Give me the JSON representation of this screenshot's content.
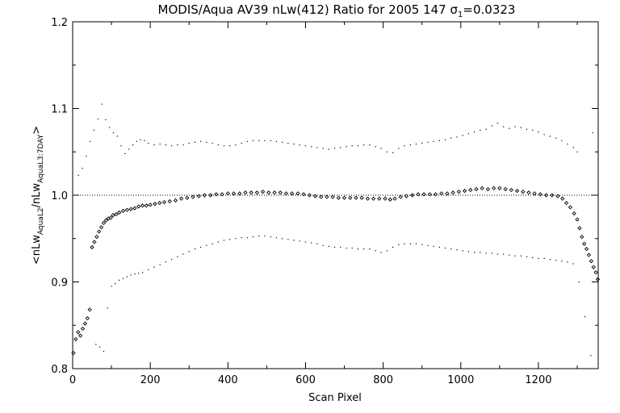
{
  "chart_data": {
    "type": "scatter",
    "title_main": "MODIS/Aqua AV39 nLw(412) Ratio for 2005 147 σ",
    "title_sigma_sub": "1",
    "title_value": "=0.0323",
    "xlabel": "Scan Pixel",
    "ylabel_parts": {
      "open": "<nLw",
      "sub1": "AquaL2",
      "mid": "/nLw",
      "sub2": "AquaL3:7DAY",
      "close": ">"
    },
    "xlim": [
      0,
      1354
    ],
    "ylim": [
      0.8,
      1.2
    ],
    "x_ticks": [
      0,
      200,
      400,
      600,
      800,
      1000,
      1200
    ],
    "y_ticks": [
      0.8,
      0.9,
      1.0,
      1.1,
      1.2
    ],
    "x_tick_labels": [
      "0",
      "200",
      "400",
      "600",
      "800",
      "1000",
      "1200"
    ],
    "y_tick_labels": [
      "0.8",
      "0.9",
      "1.0",
      "1.1",
      "1.2"
    ],
    "reference_line_y": 1.0,
    "series": [
      {
        "style": "diamond-markers",
        "points": [
          [
            2,
            0.818
          ],
          [
            8,
            0.834
          ],
          [
            14,
            0.842
          ],
          [
            20,
            0.838
          ],
          [
            26,
            0.846
          ],
          [
            32,
            0.852
          ],
          [
            38,
            0.858
          ],
          [
            44,
            0.868
          ],
          [
            50,
            0.94
          ],
          [
            56,
            0.946
          ],
          [
            62,
            0.952
          ],
          [
            68,
            0.958
          ],
          [
            74,
            0.963
          ],
          [
            80,
            0.968
          ],
          [
            86,
            0.971
          ],
          [
            92,
            0.973
          ],
          [
            98,
            0.974
          ],
          [
            104,
            0.977
          ],
          [
            112,
            0.978
          ],
          [
            120,
            0.98
          ],
          [
            130,
            0.982
          ],
          [
            140,
            0.983
          ],
          [
            150,
            0.984
          ],
          [
            160,
            0.985
          ],
          [
            170,
            0.987
          ],
          [
            180,
            0.988
          ],
          [
            190,
            0.988
          ],
          [
            200,
            0.989
          ],
          [
            212,
            0.99
          ],
          [
            224,
            0.991
          ],
          [
            236,
            0.992
          ],
          [
            250,
            0.993
          ],
          [
            265,
            0.994
          ],
          [
            280,
            0.996
          ],
          [
            295,
            0.997
          ],
          [
            310,
            0.998
          ],
          [
            325,
            0.999
          ],
          [
            340,
            1.0
          ],
          [
            355,
            1.0
          ],
          [
            370,
            1.001
          ],
          [
            385,
            1.001
          ],
          [
            400,
            1.002
          ],
          [
            415,
            1.002
          ],
          [
            430,
            1.002
          ],
          [
            445,
            1.003
          ],
          [
            460,
            1.003
          ],
          [
            475,
            1.003
          ],
          [
            490,
            1.004
          ],
          [
            505,
            1.003
          ],
          [
            520,
            1.003
          ],
          [
            535,
            1.003
          ],
          [
            550,
            1.002
          ],
          [
            565,
            1.002
          ],
          [
            580,
            1.002
          ],
          [
            595,
            1.001
          ],
          [
            610,
            1.0
          ],
          [
            625,
            0.999
          ],
          [
            640,
            0.998
          ],
          [
            655,
            0.998
          ],
          [
            670,
            0.998
          ],
          [
            685,
            0.997
          ],
          [
            700,
            0.997
          ],
          [
            715,
            0.997
          ],
          [
            730,
            0.997
          ],
          [
            745,
            0.997
          ],
          [
            760,
            0.996
          ],
          [
            775,
            0.996
          ],
          [
            790,
            0.996
          ],
          [
            805,
            0.996
          ],
          [
            818,
            0.995
          ],
          [
            830,
            0.996
          ],
          [
            845,
            0.998
          ],
          [
            860,
            0.999
          ],
          [
            875,
            1.0
          ],
          [
            890,
            1.001
          ],
          [
            905,
            1.001
          ],
          [
            920,
            1.001
          ],
          [
            935,
            1.001
          ],
          [
            950,
            1.002
          ],
          [
            965,
            1.002
          ],
          [
            980,
            1.003
          ],
          [
            995,
            1.004
          ],
          [
            1010,
            1.005
          ],
          [
            1025,
            1.006
          ],
          [
            1040,
            1.007
          ],
          [
            1055,
            1.008
          ],
          [
            1070,
            1.007
          ],
          [
            1085,
            1.008
          ],
          [
            1100,
            1.008
          ],
          [
            1115,
            1.007
          ],
          [
            1130,
            1.006
          ],
          [
            1145,
            1.005
          ],
          [
            1160,
            1.004
          ],
          [
            1175,
            1.003
          ],
          [
            1190,
            1.002
          ],
          [
            1205,
            1.001
          ],
          [
            1220,
            1.0
          ],
          [
            1235,
            1.0
          ],
          [
            1250,
            0.999
          ],
          [
            1262,
            0.996
          ],
          [
            1272,
            0.991
          ],
          [
            1282,
            0.986
          ],
          [
            1292,
            0.979
          ],
          [
            1300,
            0.972
          ],
          [
            1306,
            0.962
          ],
          [
            1312,
            0.952
          ],
          [
            1318,
            0.944
          ],
          [
            1324,
            0.938
          ],
          [
            1330,
            0.931
          ],
          [
            1336,
            0.924
          ],
          [
            1342,
            0.917
          ],
          [
            1348,
            0.911
          ],
          [
            1353,
            0.903
          ]
        ]
      },
      {
        "style": "dots",
        "points": [
          [
            15,
            1.023
          ],
          [
            25,
            1.031
          ],
          [
            35,
            1.045
          ],
          [
            45,
            1.062
          ],
          [
            55,
            1.075
          ],
          [
            65,
            1.088
          ],
          [
            75,
            1.105
          ],
          [
            85,
            1.087
          ],
          [
            95,
            1.078
          ],
          [
            105,
            1.072
          ],
          [
            115,
            1.068
          ],
          [
            125,
            1.057
          ],
          [
            135,
            1.048
          ],
          [
            145,
            1.053
          ],
          [
            155,
            1.058
          ],
          [
            165,
            1.062
          ],
          [
            175,
            1.064
          ],
          [
            185,
            1.063
          ],
          [
            195,
            1.06
          ],
          [
            210,
            1.058
          ],
          [
            225,
            1.059
          ],
          [
            240,
            1.058
          ],
          [
            255,
            1.057
          ],
          [
            270,
            1.058
          ],
          [
            285,
            1.058
          ],
          [
            300,
            1.06
          ],
          [
            315,
            1.061
          ],
          [
            330,
            1.062
          ],
          [
            345,
            1.061
          ],
          [
            360,
            1.06
          ],
          [
            375,
            1.058
          ],
          [
            390,
            1.057
          ],
          [
            405,
            1.057
          ],
          [
            420,
            1.058
          ],
          [
            435,
            1.06
          ],
          [
            450,
            1.062
          ],
          [
            465,
            1.063
          ],
          [
            480,
            1.063
          ],
          [
            495,
            1.063
          ],
          [
            510,
            1.063
          ],
          [
            525,
            1.062
          ],
          [
            540,
            1.061
          ],
          [
            555,
            1.06
          ],
          [
            570,
            1.059
          ],
          [
            585,
            1.058
          ],
          [
            600,
            1.057
          ],
          [
            615,
            1.056
          ],
          [
            630,
            1.055
          ],
          [
            645,
            1.054
          ],
          [
            660,
            1.053
          ],
          [
            675,
            1.054
          ],
          [
            690,
            1.055
          ],
          [
            705,
            1.056
          ],
          [
            720,
            1.057
          ],
          [
            735,
            1.057
          ],
          [
            750,
            1.058
          ],
          [
            765,
            1.058
          ],
          [
            780,
            1.056
          ],
          [
            795,
            1.054
          ],
          [
            810,
            1.05
          ],
          [
            825,
            1.049
          ],
          [
            840,
            1.054
          ],
          [
            855,
            1.057
          ],
          [
            870,
            1.058
          ],
          [
            885,
            1.059
          ],
          [
            900,
            1.06
          ],
          [
            915,
            1.061
          ],
          [
            930,
            1.062
          ],
          [
            945,
            1.063
          ],
          [
            960,
            1.064
          ],
          [
            975,
            1.066
          ],
          [
            990,
            1.067
          ],
          [
            1005,
            1.069
          ],
          [
            1020,
            1.071
          ],
          [
            1035,
            1.073
          ],
          [
            1050,
            1.075
          ],
          [
            1065,
            1.076
          ],
          [
            1080,
            1.08
          ],
          [
            1095,
            1.083
          ],
          [
            1110,
            1.079
          ],
          [
            1125,
            1.077
          ],
          [
            1140,
            1.079
          ],
          [
            1155,
            1.078
          ],
          [
            1170,
            1.076
          ],
          [
            1185,
            1.075
          ],
          [
            1200,
            1.073
          ],
          [
            1215,
            1.07
          ],
          [
            1230,
            1.068
          ],
          [
            1245,
            1.066
          ],
          [
            1260,
            1.063
          ],
          [
            1275,
            1.059
          ],
          [
            1290,
            1.055
          ],
          [
            1300,
            1.05
          ],
          [
            1340,
            1.072
          ]
        ]
      },
      {
        "style": "dots",
        "points": [
          [
            60,
            0.828
          ],
          [
            70,
            0.825
          ],
          [
            80,
            0.82
          ],
          [
            90,
            0.87
          ],
          [
            100,
            0.895
          ],
          [
            110,
            0.898
          ],
          [
            120,
            0.902
          ],
          [
            130,
            0.904
          ],
          [
            140,
            0.906
          ],
          [
            150,
            0.908
          ],
          [
            160,
            0.909
          ],
          [
            170,
            0.91
          ],
          [
            180,
            0.911
          ],
          [
            195,
            0.914
          ],
          [
            210,
            0.917
          ],
          [
            225,
            0.92
          ],
          [
            240,
            0.923
          ],
          [
            255,
            0.926
          ],
          [
            270,
            0.929
          ],
          [
            285,
            0.932
          ],
          [
            300,
            0.935
          ],
          [
            315,
            0.938
          ],
          [
            330,
            0.94
          ],
          [
            345,
            0.942
          ],
          [
            360,
            0.944
          ],
          [
            375,
            0.946
          ],
          [
            390,
            0.948
          ],
          [
            405,
            0.949
          ],
          [
            420,
            0.95
          ],
          [
            435,
            0.951
          ],
          [
            450,
            0.951
          ],
          [
            465,
            0.952
          ],
          [
            480,
            0.953
          ],
          [
            495,
            0.953
          ],
          [
            510,
            0.952
          ],
          [
            525,
            0.951
          ],
          [
            540,
            0.95
          ],
          [
            555,
            0.949
          ],
          [
            570,
            0.948
          ],
          [
            585,
            0.947
          ],
          [
            600,
            0.946
          ],
          [
            615,
            0.945
          ],
          [
            630,
            0.944
          ],
          [
            645,
            0.942
          ],
          [
            660,
            0.941
          ],
          [
            675,
            0.94
          ],
          [
            690,
            0.94
          ],
          [
            705,
            0.939
          ],
          [
            720,
            0.939
          ],
          [
            735,
            0.938
          ],
          [
            750,
            0.938
          ],
          [
            765,
            0.938
          ],
          [
            780,
            0.936
          ],
          [
            795,
            0.934
          ],
          [
            810,
            0.936
          ],
          [
            825,
            0.94
          ],
          [
            840,
            0.943
          ],
          [
            855,
            0.944
          ],
          [
            870,
            0.944
          ],
          [
            885,
            0.944
          ],
          [
            900,
            0.943
          ],
          [
            915,
            0.942
          ],
          [
            930,
            0.941
          ],
          [
            945,
            0.94
          ],
          [
            960,
            0.939
          ],
          [
            975,
            0.938
          ],
          [
            990,
            0.937
          ],
          [
            1005,
            0.936
          ],
          [
            1020,
            0.935
          ],
          [
            1035,
            0.934
          ],
          [
            1050,
            0.934
          ],
          [
            1065,
            0.933
          ],
          [
            1080,
            0.933
          ],
          [
            1095,
            0.932
          ],
          [
            1110,
            0.932
          ],
          [
            1125,
            0.931
          ],
          [
            1140,
            0.93
          ],
          [
            1155,
            0.93
          ],
          [
            1170,
            0.929
          ],
          [
            1185,
            0.928
          ],
          [
            1200,
            0.927
          ],
          [
            1215,
            0.927
          ],
          [
            1230,
            0.926
          ],
          [
            1245,
            0.925
          ],
          [
            1260,
            0.924
          ],
          [
            1275,
            0.923
          ],
          [
            1290,
            0.921
          ],
          [
            1305,
            0.9
          ],
          [
            1320,
            0.86
          ],
          [
            1335,
            0.815
          ]
        ]
      }
    ]
  }
}
